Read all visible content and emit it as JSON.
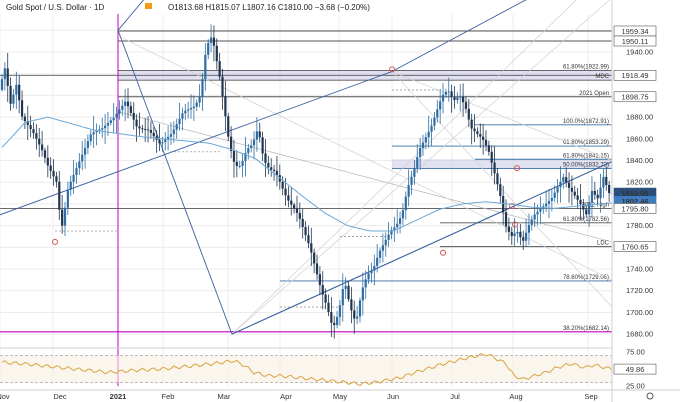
{
  "header": {
    "title": "Gold Spot / U.S. Dollar · 1D",
    "ohlc": "O1813.68 H1815.07 L1807.16 C1810.00 −3.68 (−0.20%)"
  },
  "colors": {
    "bull": "#2e6da4",
    "bear": "#1f3550",
    "sma": "#6aa8d8",
    "trend": "#3a5fa0",
    "magenta": "#c000c0",
    "dark_line": "#333333",
    "zone_fill": "#c8c8e8",
    "rsi": "#d9a441",
    "pivot_marker": "#d9534f"
  },
  "chart_data": {
    "type": "candlestick",
    "title": "",
    "xlabel": "",
    "ylabel": "",
    "ylim": [
      1670,
      1975
    ],
    "grid": true,
    "x_ticks": [
      "Nov",
      "Dec",
      "2021",
      "Feb",
      "Mar",
      "Apr",
      "May",
      "Jun",
      "Jul",
      "Aug",
      "Sep"
    ],
    "y_ticks": [
      1680,
      1700,
      1720,
      1740,
      1760,
      1780,
      1800,
      1820,
      1840,
      1860,
      1880,
      1900,
      1920,
      1940,
      1960
    ],
    "price_tags": [
      {
        "value": 1959.34,
        "label": "1959.34",
        "style": "outline"
      },
      {
        "value": 1950.11,
        "label": "1950.11",
        "style": "outline"
      },
      {
        "value": 1918.49,
        "label": "1918.49",
        "style": "outline"
      },
      {
        "value": 1898.75,
        "label": "1898.75",
        "style": "outline"
      },
      {
        "value": 1810.0,
        "label": "1810.00",
        "style": "current"
      },
      {
        "value": 1802.46,
        "label": "1802.46",
        "style": "blue"
      },
      {
        "value": 1795.8,
        "label": "1795.80",
        "style": "outline"
      },
      {
        "value": 1760.65,
        "label": "1760.65",
        "style": "outline"
      }
    ],
    "levels": [
      {
        "value": 1959.34,
        "label": "",
        "color": "#555555"
      },
      {
        "value": 1950.11,
        "label": "",
        "color": "#555555"
      },
      {
        "value": 1922.99,
        "label": "61.80%(1922.99)",
        "color": "#555555"
      },
      {
        "value": 1918.49,
        "label": "",
        "color": "#555555"
      },
      {
        "value": 1914.0,
        "label": "MDC",
        "color": "#555555"
      },
      {
        "value": 1898.75,
        "label": "2021 Open",
        "color": "#555555"
      },
      {
        "value": 1872.91,
        "label": "100.0%(1872.91)",
        "color": "#3a6ea5"
      },
      {
        "value": 1853.29,
        "label": "61.80%(1853.29)",
        "color": "#3a6ea5"
      },
      {
        "value": 1841.15,
        "label": "61.80%(1841.15)",
        "color": "#3a6ea5"
      },
      {
        "value": 1832.73,
        "label": "50.00%(1832.73)",
        "color": "#3a6ea5"
      },
      {
        "value": 1795.8,
        "label": "2012 High",
        "color": "#555555"
      },
      {
        "value": 1782.56,
        "label": "61.80%(1782.56)",
        "color": "#555555"
      },
      {
        "value": 1760.65,
        "label": "LDC",
        "color": "#555555"
      },
      {
        "value": 1729.06,
        "label": "78.60%(1729.06)",
        "color": "#3a6ea5"
      },
      {
        "value": 1682.14,
        "label": "38.20%(1682.14)",
        "color": "#c000c0"
      }
    ],
    "rsi": {
      "ylim": [
        25,
        75
      ],
      "ticks": [
        75,
        50,
        25
      ],
      "levels": [
        70,
        30
      ],
      "last_label": "49.86",
      "anchors": [
        [
          0,
          60
        ],
        [
          2,
          57
        ],
        [
          4,
          53
        ],
        [
          6,
          49
        ],
        [
          8,
          45
        ],
        [
          10,
          48
        ],
        [
          12,
          50
        ],
        [
          14,
          54
        ],
        [
          16,
          58
        ],
        [
          17.5,
          62
        ],
        [
          18.2,
          56
        ],
        [
          19,
          45
        ],
        [
          20,
          40
        ],
        [
          21,
          40
        ],
        [
          22,
          38
        ],
        [
          24,
          34
        ],
        [
          26,
          30
        ],
        [
          27,
          28
        ],
        [
          28,
          30
        ],
        [
          30,
          37
        ],
        [
          31,
          44
        ],
        [
          32,
          50
        ],
        [
          33,
          56
        ],
        [
          34,
          61
        ],
        [
          35,
          66
        ],
        [
          36,
          70
        ],
        [
          36.6,
          72
        ],
        [
          37.2,
          66
        ],
        [
          38,
          58
        ],
        [
          38.6,
          40
        ],
        [
          39.3,
          35
        ],
        [
          40,
          39
        ],
        [
          41,
          45
        ],
        [
          42,
          53
        ],
        [
          43,
          58
        ],
        [
          43.4,
          55
        ],
        [
          44,
          52
        ],
        [
          44.6,
          56
        ],
        [
          45.5,
          52
        ],
        [
          46,
          50
        ]
      ]
    },
    "anchors": [
      [
        0,
        1905
      ],
      [
        0.5,
        1925
      ],
      [
        1,
        1892
      ],
      [
        1.5,
        1910
      ],
      [
        2,
        1880
      ],
      [
        3,
        1865
      ],
      [
        3.8,
        1848
      ],
      [
        4.2,
        1836
      ],
      [
        4.5,
        1830
      ],
      [
        5,
        1820
      ],
      [
        5.4,
        1775
      ],
      [
        6,
        1815
      ],
      [
        7,
        1840
      ],
      [
        8,
        1865
      ],
      [
        9,
        1870
      ],
      [
        10,
        1880
      ],
      [
        11,
        1895
      ],
      [
        12,
        1870
      ],
      [
        13,
        1868
      ],
      [
        14,
        1855
      ],
      [
        15,
        1865
      ],
      [
        16,
        1885
      ],
      [
        17,
        1890
      ],
      [
        17.5,
        1900
      ],
      [
        18,
        1945
      ],
      [
        18.5,
        1955
      ],
      [
        19.2,
        1915
      ],
      [
        20,
        1855
      ],
      [
        20.5,
        1835
      ],
      [
        21,
        1835
      ],
      [
        21.5,
        1850
      ],
      [
        22,
        1855
      ],
      [
        22.5,
        1870
      ],
      [
        23,
        1840
      ],
      [
        23.5,
        1832
      ],
      [
        24,
        1830
      ],
      [
        25,
        1805
      ],
      [
        26,
        1790
      ],
      [
        26.5,
        1775
      ],
      [
        27,
        1760
      ],
      [
        27.5,
        1740
      ],
      [
        28,
        1720
      ],
      [
        28.5,
        1705
      ],
      [
        29,
        1685
      ],
      [
        29.5,
        1700
      ],
      [
        30,
        1730
      ],
      [
        30.5,
        1705
      ],
      [
        31,
        1690
      ],
      [
        31.5,
        1720
      ],
      [
        32,
        1735
      ],
      [
        32.5,
        1740
      ],
      [
        33,
        1755
      ],
      [
        34,
        1775
      ],
      [
        34.5,
        1780
      ],
      [
        35,
        1790
      ],
      [
        35.5,
        1815
      ],
      [
        36,
        1830
      ],
      [
        36.5,
        1850
      ],
      [
        37,
        1860
      ],
      [
        37.5,
        1870
      ],
      [
        38,
        1885
      ],
      [
        38.5,
        1900
      ],
      [
        39,
        1905
      ],
      [
        39.5,
        1895
      ],
      [
        40,
        1900
      ],
      [
        40.5,
        1890
      ],
      [
        41,
        1870
      ],
      [
        41.5,
        1865
      ],
      [
        42,
        1860
      ],
      [
        42.5,
        1850
      ],
      [
        43,
        1830
      ],
      [
        43.5,
        1810
      ],
      [
        44,
        1780
      ],
      [
        44.5,
        1770
      ],
      [
        45,
        1775
      ],
      [
        45.5,
        1765
      ],
      [
        46,
        1780
      ],
      [
        46.5,
        1790
      ],
      [
        47,
        1795
      ],
      [
        47.5,
        1800
      ],
      [
        48,
        1805
      ],
      [
        48.5,
        1815
      ],
      [
        49,
        1825
      ],
      [
        49.5,
        1815
      ],
      [
        50,
        1808
      ],
      [
        50.5,
        1800
      ],
      [
        51,
        1790
      ],
      [
        51.5,
        1812
      ],
      [
        52,
        1805
      ],
      [
        52.5,
        1825
      ],
      [
        53,
        1810
      ]
    ],
    "sma": [
      [
        0,
        1852
      ],
      [
        2,
        1875
      ],
      [
        4,
        1880
      ],
      [
        6,
        1874
      ],
      [
        8,
        1868
      ],
      [
        10,
        1865
      ],
      [
        12,
        1862
      ],
      [
        14,
        1860
      ],
      [
        16,
        1858
      ],
      [
        18,
        1856
      ],
      [
        20,
        1850
      ],
      [
        22,
        1842
      ],
      [
        24,
        1825
      ],
      [
        26,
        1808
      ],
      [
        28,
        1792
      ],
      [
        30,
        1780
      ],
      [
        32,
        1775
      ],
      [
        34,
        1775
      ],
      [
        36,
        1785
      ],
      [
        38,
        1795
      ],
      [
        40,
        1800
      ],
      [
        42,
        1802
      ],
      [
        44,
        1800
      ],
      [
        46,
        1797
      ],
      [
        48,
        1796
      ],
      [
        50,
        1798
      ],
      [
        52,
        1800
      ],
      [
        53,
        1801
      ]
    ]
  }
}
